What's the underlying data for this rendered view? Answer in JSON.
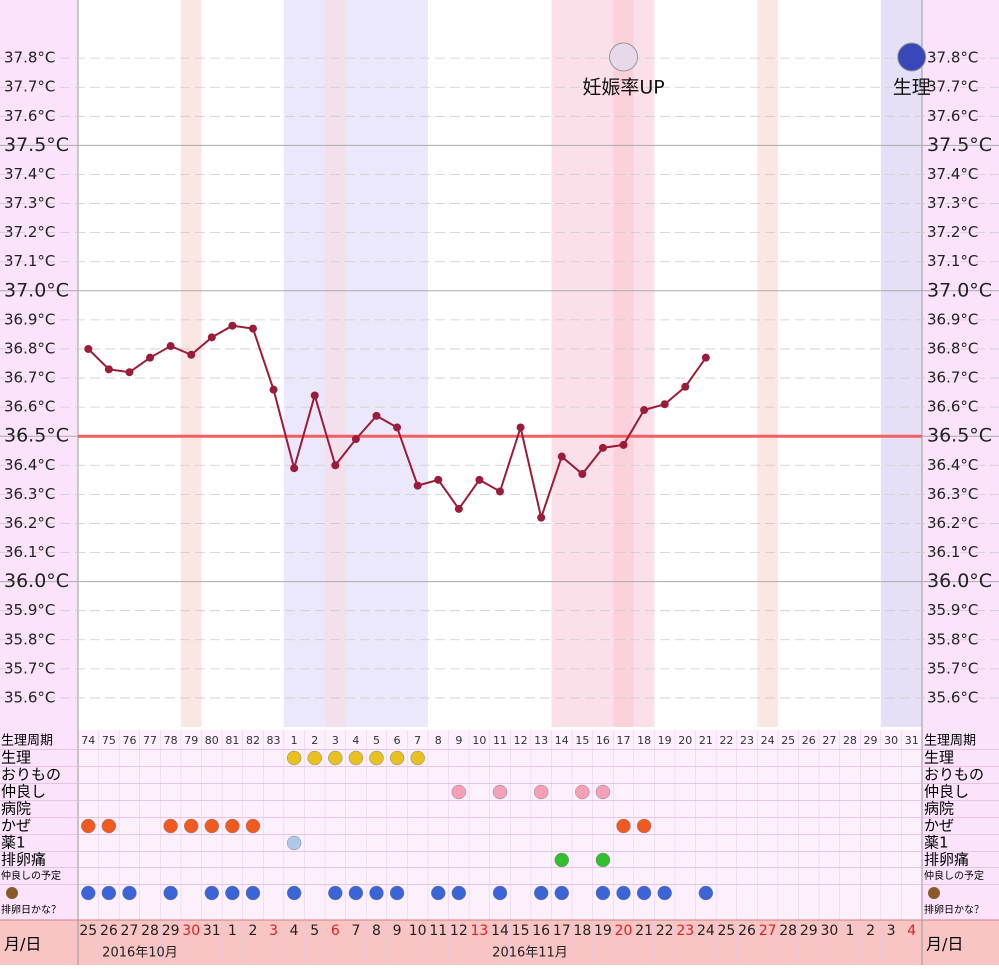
{
  "chart_data": {
    "type": "line",
    "categories": [
      "25",
      "26",
      "27",
      "28",
      "29",
      "30",
      "31",
      "1",
      "2",
      "3",
      "4",
      "5",
      "6",
      "7",
      "8",
      "9",
      "10",
      "11",
      "12",
      "13",
      "14",
      "15",
      "16",
      "17",
      "18",
      "19",
      "20",
      "21",
      "22",
      "23",
      "24",
      "25",
      "26",
      "27",
      "28",
      "29",
      "30",
      "1",
      "2",
      "3",
      "4"
    ],
    "red_days": [
      5,
      9,
      12,
      19,
      26,
      29,
      33,
      40
    ],
    "months": [
      "2016年10月",
      "2016年11月"
    ],
    "date_label": "月/日",
    "cycle_label": "生理周期",
    "cycle_days": [
      "74",
      "75",
      "76",
      "77",
      "78",
      "79",
      "80",
      "81",
      "82",
      "83",
      "1",
      "2",
      "3",
      "4",
      "5",
      "6",
      "7",
      "8",
      "9",
      "10",
      "11",
      "12",
      "13",
      "14",
      "15",
      "16",
      "17",
      "18",
      "19",
      "20",
      "21",
      "22",
      "23",
      "24",
      "25",
      "26",
      "27",
      "28",
      "29",
      "30",
      "31"
    ],
    "series": [
      {
        "color": "#9b1b3a",
        "values": [
          36.8,
          36.73,
          36.72,
          36.77,
          36.81,
          36.78,
          36.84,
          36.88,
          36.87,
          36.66,
          36.39,
          36.64,
          36.4,
          36.49,
          36.57,
          36.53,
          36.33,
          36.35,
          36.25,
          36.35,
          36.31,
          36.53,
          36.22,
          36.43,
          36.37,
          36.46,
          36.47,
          36.59,
          36.61,
          36.67,
          36.77,
          null,
          null,
          null,
          null,
          null,
          null,
          null,
          null,
          null,
          null
        ]
      }
    ],
    "ylim": [
      35.5,
      38.0
    ],
    "yticks": [
      {
        "value": 35.6,
        "label": "35.6°C"
      },
      {
        "value": 35.7,
        "label": "35.7°C"
      },
      {
        "value": 35.8,
        "label": "35.8°C"
      },
      {
        "value": 35.9,
        "label": "35.9°C"
      },
      {
        "value": 36.0,
        "label": "36.0°C"
      },
      {
        "value": 36.1,
        "label": "36.1°C"
      },
      {
        "value": 36.2,
        "label": "36.2°C"
      },
      {
        "value": 36.3,
        "label": "36.3°C"
      },
      {
        "value": 36.4,
        "label": "36.4°C"
      },
      {
        "value": 36.5,
        "label": "36.5°C"
      },
      {
        "value": 36.6,
        "label": "36.6°C"
      },
      {
        "value": 36.7,
        "label": "36.7°C"
      },
      {
        "value": 36.8,
        "label": "36.8°C"
      },
      {
        "value": 36.9,
        "label": "36.9°C"
      },
      {
        "value": 37.0,
        "label": "37.0°C"
      },
      {
        "value": 37.1,
        "label": "37.1°C"
      },
      {
        "value": 37.2,
        "label": "37.2°C"
      },
      {
        "value": 37.3,
        "label": "37.3°C"
      },
      {
        "value": 37.4,
        "label": "37.4°C"
      },
      {
        "value": 37.5,
        "label": "37.5°C"
      },
      {
        "value": 37.6,
        "label": "37.6°C"
      },
      {
        "value": 37.7,
        "label": "37.7°C"
      },
      {
        "value": 37.8,
        "label": "37.8°C"
      }
    ],
    "coverline": 36.5,
    "coverline_color": "#f06060",
    "shading": [
      {
        "start": 5,
        "end": 5,
        "color": "#fbe6e4"
      },
      {
        "start": 10,
        "end": 16,
        "color": "#ece8fb"
      },
      {
        "start": 12,
        "end": 12,
        "color": "#f3e0ea"
      },
      {
        "start": 23,
        "end": 27,
        "color": "#fbe0ea"
      },
      {
        "start": 26,
        "end": 26,
        "color": "#fbd2dc"
      },
      {
        "start": 33,
        "end": 33,
        "color": "#fbe6e4"
      },
      {
        "start": 39,
        "end": 40,
        "color": "#e6e0f6"
      }
    ],
    "annotations": [
      {
        "text": "妊娠率UP",
        "day": 26,
        "color": "#e8d8e8"
      },
      {
        "text": "生理",
        "day": 40,
        "color": "#3848b8"
      }
    ],
    "rows": [
      {
        "label": "生理",
        "color": "#e8c020",
        "days": [
          10,
          11,
          12,
          13,
          14,
          15,
          16
        ]
      },
      {
        "label": "おりもの",
        "color": "#ffffff",
        "days": []
      },
      {
        "label": "仲良し",
        "color": "#f4a0b8",
        "days": [
          18,
          20,
          22,
          24,
          25
        ]
      },
      {
        "label": "病院",
        "color": "#ffffff",
        "days": []
      },
      {
        "label": "かぜ",
        "color": "#f05a20",
        "days": [
          0,
          1,
          4,
          5,
          6,
          7,
          8,
          26,
          27
        ]
      },
      {
        "label": "薬1",
        "color": "#b0c8e8",
        "days": [
          10
        ]
      },
      {
        "label": "排卵痛",
        "color": "#30c030",
        "days": [
          23,
          25
        ]
      },
      {
        "label": "仲良しの予定",
        "color": "#ffffff",
        "days": []
      },
      {
        "label": "排卵日かな？",
        "color": "#3a64d8",
        "days": [
          0,
          1,
          2,
          4,
          6,
          7,
          8,
          10,
          12,
          13,
          14,
          15,
          17,
          18,
          20,
          22,
          23,
          25,
          26,
          27,
          28,
          30
        ]
      }
    ]
  }
}
